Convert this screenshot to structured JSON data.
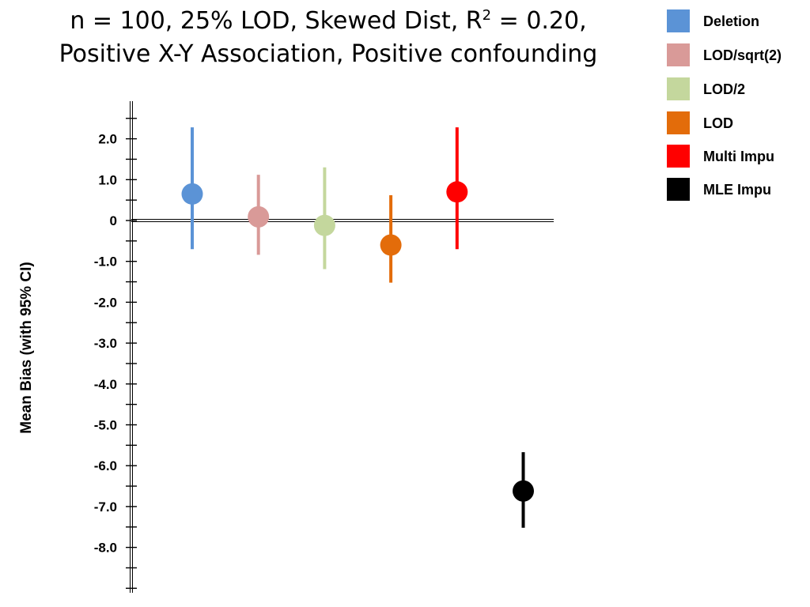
{
  "title": {
    "line1_prefix": "n = 100, 25% LOD, Skewed Dist, R",
    "line1_sup": "2",
    "line1_suffix": " = 0.20,",
    "line2": "Positive X-Y Association, Positive confounding"
  },
  "chart_data": {
    "type": "scatter",
    "title": "n = 100, 25% LOD, Skewed Dist, R² = 0.20, Positive X-Y Association, Positive confounding",
    "xlabel": "",
    "ylabel": "Mean Bias (with 95% CI)",
    "ylim": [
      -9.2,
      2.9
    ],
    "yticks": [
      2.0,
      1.0,
      0,
      -1.0,
      -2.0,
      -3.0,
      -4.0,
      -5.0,
      -6.0,
      -7.0,
      -8.0
    ],
    "ytick_labels": [
      "2.0",
      "1.0",
      "0",
      "-1.0",
      "-2.0",
      "-3.0",
      "-4.0",
      "-5.0",
      "-6.0",
      "-7.0",
      "-8.0"
    ],
    "reference_line": 0,
    "grid": false,
    "legend_position": "top-right, outside plot",
    "series": [
      {
        "name": "Deletion",
        "color": "#5b93d6",
        "mean": 0.65,
        "ci": [
          -0.7,
          2.28
        ]
      },
      {
        "name": "LOD/sqrt(2)",
        "color": "#d99a98",
        "mean": 0.09,
        "ci": [
          -0.84,
          1.12
        ]
      },
      {
        "name": "LOD/2",
        "color": "#c4d79d",
        "mean": -0.12,
        "ci": [
          -1.19,
          1.3
        ]
      },
      {
        "name": "LOD",
        "color": "#e36c0a",
        "mean": -0.6,
        "ci": [
          -1.52,
          0.62
        ]
      },
      {
        "name": "Multi Impu",
        "color": "#ff0000",
        "mean": 0.7,
        "ci": [
          -0.7,
          2.28
        ]
      },
      {
        "name": "MLE Impu",
        "color": "#000000",
        "mean": -6.62,
        "ci": [
          -7.52,
          -5.67
        ]
      }
    ]
  }
}
